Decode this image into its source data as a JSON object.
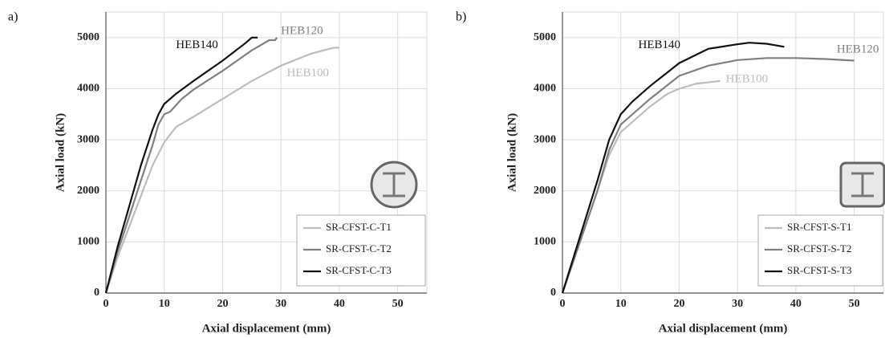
{
  "chart_data": [
    {
      "type": "line",
      "panel": "a)",
      "x_label": "Axial displacement (mm)",
      "y_label": "Axial load (kN)",
      "xlim": [
        0,
        55
      ],
      "ylim": [
        0,
        5500
      ],
      "xticks": [
        0,
        10,
        20,
        30,
        40,
        50
      ],
      "yticks": [
        0,
        1000,
        2000,
        3000,
        4000,
        5000
      ],
      "grid": true,
      "legend": "lower right",
      "series": [
        {
          "name": "SR-CFST-C-T1",
          "color": "#bdbdbd",
          "x": [
            0,
            2,
            4,
            6,
            8,
            10,
            12,
            15,
            20,
            25,
            30,
            35,
            39,
            40
          ],
          "values": [
            0,
            700,
            1300,
            1900,
            2500,
            2950,
            3250,
            3450,
            3800,
            4150,
            4450,
            4680,
            4800,
            4800
          ]
        },
        {
          "name": "SR-CFST-C-T2",
          "color": "#808080",
          "x": [
            0,
            2,
            4,
            6,
            8,
            9,
            10,
            11,
            13,
            15,
            20,
            25,
            28,
            29,
            29.3
          ],
          "values": [
            0,
            800,
            1500,
            2200,
            2900,
            3300,
            3500,
            3550,
            3800,
            3980,
            4350,
            4750,
            4950,
            4950,
            5000
          ]
        },
        {
          "name": "SR-CFST-C-T3",
          "color": "#111111",
          "x": [
            0,
            2,
            4,
            6,
            8,
            9,
            10,
            12,
            15,
            20,
            24,
            25,
            26
          ],
          "values": [
            0,
            900,
            1700,
            2500,
            3200,
            3500,
            3700,
            3900,
            4150,
            4550,
            4900,
            5000,
            5000
          ]
        }
      ],
      "annotations": [
        "HEB140",
        "HEB120",
        "HEB100"
      ]
    },
    {
      "type": "line",
      "panel": "b)",
      "x_label": "Axial displacement (mm)",
      "y_label": "Axial load (kN)",
      "xlim": [
        0,
        55
      ],
      "ylim": [
        0,
        5500
      ],
      "xticks": [
        0,
        10,
        20,
        30,
        40,
        50
      ],
      "yticks": [
        0,
        1000,
        2000,
        3000,
        4000,
        5000
      ],
      "grid": true,
      "legend": "lower right",
      "series": [
        {
          "name": "SR-CFST-S-T1",
          "color": "#bdbdbd",
          "x": [
            0,
            3,
            6,
            8,
            10,
            12,
            15,
            18,
            20,
            23,
            27
          ],
          "values": [
            0,
            1000,
            2000,
            2700,
            3150,
            3350,
            3650,
            3900,
            4000,
            4100,
            4150
          ]
        },
        {
          "name": "SR-CFST-S-T2",
          "color": "#808080",
          "x": [
            0,
            3,
            6,
            8,
            10,
            12,
            15,
            20,
            25,
            30,
            35,
            40,
            45,
            50
          ],
          "values": [
            0,
            1000,
            2000,
            2800,
            3300,
            3500,
            3800,
            4250,
            4450,
            4560,
            4600,
            4600,
            4580,
            4550
          ]
        },
        {
          "name": "SR-CFST-S-T3",
          "color": "#111111",
          "x": [
            0,
            3,
            6,
            8,
            10,
            12,
            15,
            20,
            25,
            30,
            32,
            35,
            38
          ],
          "values": [
            0,
            1100,
            2200,
            3000,
            3500,
            3750,
            4050,
            4500,
            4780,
            4870,
            4900,
            4880,
            4820
          ]
        }
      ],
      "annotations": [
        "HEB140",
        "HEB120",
        "HEB100"
      ]
    }
  ]
}
